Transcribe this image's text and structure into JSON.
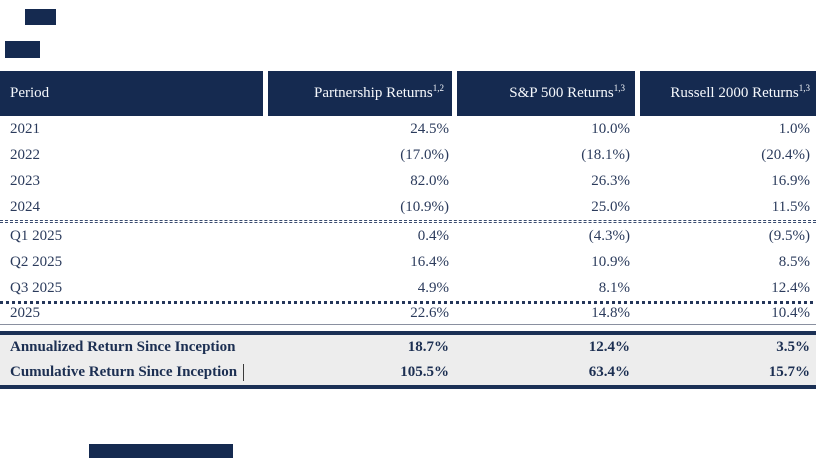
{
  "header": {
    "columns": [
      {
        "label": "Period",
        "sup": ""
      },
      {
        "label": "Partnership Returns",
        "sup": "1,2"
      },
      {
        "label": "S&P 500 Returns",
        "sup": "1,3"
      },
      {
        "label": "Russell 2000 Returns",
        "sup": "1,3"
      }
    ]
  },
  "table": {
    "annual_rows": [
      {
        "period": "2021",
        "partnership": "24.5%",
        "sp500": "10.0%",
        "russell2000": "1.0%"
      },
      {
        "period": "2022",
        "partnership": "(17.0%)",
        "sp500": "(18.1%)",
        "russell2000": "(20.4%)"
      },
      {
        "period": "2023",
        "partnership": "82.0%",
        "sp500": "26.3%",
        "russell2000": "16.9%"
      },
      {
        "period": "2024",
        "partnership": "(10.9%)",
        "sp500": "25.0%",
        "russell2000": "11.5%"
      }
    ],
    "quarterly_rows": [
      {
        "period": "Q1 2025",
        "partnership": "0.4%",
        "sp500": "(4.3%)",
        "russell2000": "(9.5%)"
      },
      {
        "period": "Q2 2025",
        "partnership": "16.4%",
        "sp500": "10.9%",
        "russell2000": "8.5%"
      },
      {
        "period": "Q3 2025",
        "partnership": "4.9%",
        "sp500": "8.1%",
        "russell2000": "12.4%"
      }
    ],
    "ytd_row": {
      "period": "2025",
      "partnership": "22.6%",
      "sp500": "14.8%",
      "russell2000": "10.4%"
    },
    "summary_rows": [
      {
        "period": "Annualized Return Since Inception",
        "partnership": "18.7%",
        "sp500": "12.4%",
        "russell2000": "3.5%"
      },
      {
        "period": "Cumulative Return Since Inception",
        "partnership": "105.5%",
        "sp500": "63.4%",
        "russell2000": "15.7%"
      }
    ]
  },
  "colors": {
    "header_bg": "#152A50",
    "body_text": "#2B3B5C",
    "summary_bg": "#EDEDED",
    "rule": "#1B3055"
  }
}
